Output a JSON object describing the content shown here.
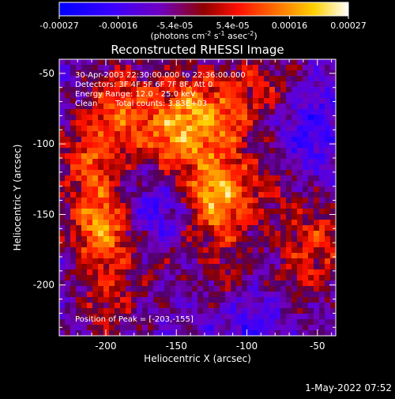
{
  "chart_data": {
    "type": "heatmap",
    "title": "Reconstructed RHESSI Image",
    "xlabel": "Heliocentric X (arcsec)",
    "ylabel": "Heliocentric Y (arcsec)",
    "xlim": [
      -233,
      -37
    ],
    "ylim": [
      -236,
      -40
    ],
    "x_ticks": [
      -200,
      -150,
      -100,
      -50
    ],
    "y_ticks": [
      -50,
      -100,
      -150,
      -200
    ],
    "colorbar": {
      "range": [
        -0.00027,
        0.00027
      ],
      "tick_values": [
        -0.00027,
        -0.00016,
        -5.4e-05,
        5.4e-05,
        0.00016,
        0.00027
      ],
      "tick_labels": [
        "-0.00027",
        "-0.00016",
        "-5.4e-05",
        "5.4e-05",
        "0.00016",
        "0.00027"
      ],
      "units_text": "(photons cm",
      "units_exp1": "-2",
      "units_mid": " s",
      "units_exp2": "-1",
      "units_end": " asec",
      "units_exp3": "-2",
      "units_close": ")"
    },
    "annotations": {
      "time_range": "30-Apr-2003 22:30:00.000 to 22:36:00.000",
      "detectors": "Detectors: 3F 4F 5F 6F 7F 8F, Att 0",
      "energy_range": "Energy Range: 12.0 - 25.0 keV",
      "method": "Clean",
      "total_counts": "Total counts: 3.83E+03",
      "peak_position": "Position of Peak = [-203,-155]"
    },
    "peak": [
      -203,
      -155
    ],
    "sources": [
      {
        "x": -202,
        "y": -160,
        "intensity": 0.00024
      },
      {
        "x": -122,
        "y": -138,
        "intensity": 0.00026
      },
      {
        "x": -210,
        "y": -110,
        "intensity": 0.00017
      },
      {
        "x": -190,
        "y": -70,
        "intensity": 0.00016
      },
      {
        "x": -155,
        "y": -95,
        "intensity": 0.00018
      },
      {
        "x": -140,
        "y": -72,
        "intensity": 0.00011
      },
      {
        "x": -120,
        "y": -85,
        "intensity": 0.00013
      },
      {
        "x": -112,
        "y": -195,
        "intensity": 9e-05
      },
      {
        "x": -75,
        "y": -65,
        "intensity": 0.0001
      },
      {
        "x": -85,
        "y": -130,
        "intensity": 8e-05
      },
      {
        "x": -50,
        "y": -165,
        "intensity": 0.00012
      },
      {
        "x": -60,
        "y": -195,
        "intensity": 8e-05
      },
      {
        "x": -200,
        "y": -215,
        "intensity": 0.00011
      },
      {
        "x": -160,
        "y": -180,
        "intensity": 7e-05
      },
      {
        "x": -100,
        "y": -60,
        "intensity": 7e-05
      },
      {
        "x": -60,
        "y": -85,
        "intensity": -0.00013
      },
      {
        "x": -165,
        "y": -150,
        "intensity": -0.00012
      },
      {
        "x": -100,
        "y": -225,
        "intensity": -8e-05
      }
    ]
  },
  "timestamp": "1-May-2022 07:52"
}
